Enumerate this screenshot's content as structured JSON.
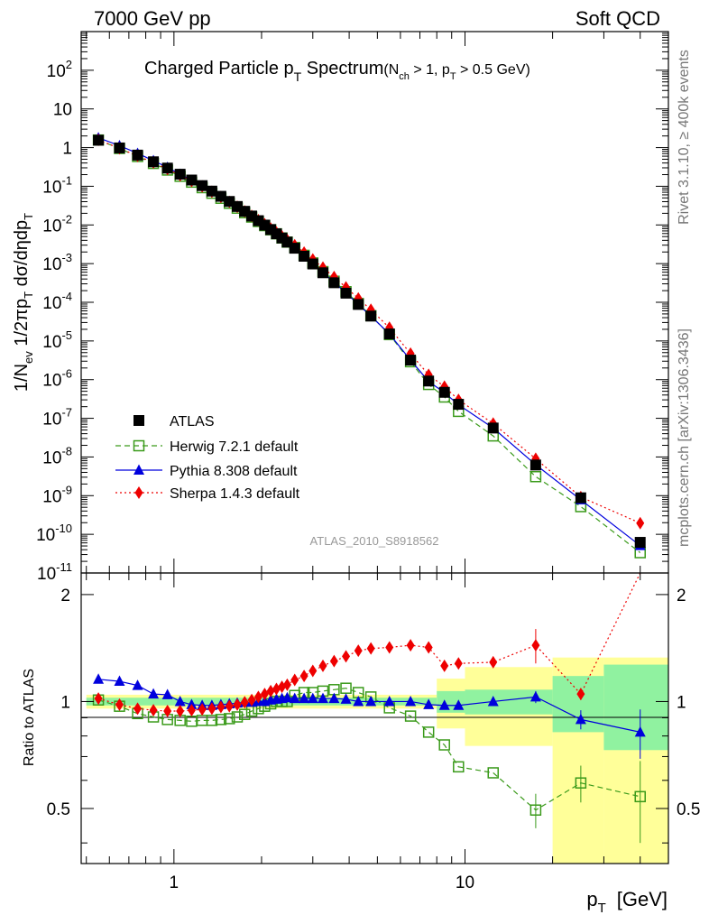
{
  "header": {
    "left": "7000 GeV pp",
    "right": "Soft QCD"
  },
  "side_labels": {
    "rivet": "Rivet 3.1.10, ≥ 400k events",
    "mcplots": "mcplots.cern.ch [arXiv:1306.3436]"
  },
  "analysis_id": "ATLAS_2010_S8918562",
  "colors": {
    "atlas": "#000000",
    "herwig": "#3a9a1a",
    "pythia": "#0000dd",
    "sherpa": "#ee0000",
    "band_inner": "#90f2a0",
    "band_outer": "#ffff99"
  },
  "chart_data": [
    {
      "type": "scatter",
      "panel": "main",
      "title": {
        "main": "Charged Particle p",
        "sub": "T",
        "rest": " Spectrum",
        "cond_a": "(N",
        "cond_a_sub": "ch",
        "cond_b": " > 1, p",
        "cond_b_sub": "T",
        "cond_c": " > 0.5 GeV)"
      },
      "ylabel": "1/N_ev 1/2πp_T dσ/dηdp_T",
      "ylabel_parts": {
        "a": "1/N",
        "a_sub": "ev",
        "b": " 1/2πp",
        "b_sub": "T",
        "c": " dσ/dηdp",
        "c_sub": "T"
      },
      "x_scale": "log",
      "y_scale": "log",
      "xlim": [
        0.48,
        50
      ],
      "ylim": [
        1e-11,
        1000
      ],
      "y_ticks": [
        {
          "v": 100,
          "m": "10",
          "e": "2"
        },
        {
          "v": 10,
          "m": "10",
          "e": ""
        },
        {
          "v": 1,
          "m": "1",
          "e": ""
        },
        {
          "v": 0.1,
          "m": "10",
          "e": "-1"
        },
        {
          "v": 0.01,
          "m": "10",
          "e": "-2"
        },
        {
          "v": 0.001,
          "m": "10",
          "e": "-3"
        },
        {
          "v": 0.0001,
          "m": "10",
          "e": "-4"
        },
        {
          "v": 1e-05,
          "m": "10",
          "e": "-5"
        },
        {
          "v": 1e-06,
          "m": "10",
          "e": "-6"
        },
        {
          "v": 1e-07,
          "m": "10",
          "e": "-7"
        },
        {
          "v": 1e-08,
          "m": "10",
          "e": "-8"
        },
        {
          "v": 1e-09,
          "m": "10",
          "e": "-9"
        },
        {
          "v": 1e-10,
          "m": "10",
          "e": "-10"
        },
        {
          "v": 1e-11,
          "m": "10",
          "e": "-11"
        }
      ],
      "x": [
        0.55,
        0.65,
        0.75,
        0.85,
        0.95,
        1.05,
        1.15,
        1.25,
        1.35,
        1.45,
        1.55,
        1.65,
        1.75,
        1.85,
        1.95,
        2.05,
        2.15,
        2.25,
        2.35,
        2.45,
        2.6,
        2.8,
        3.0,
        3.25,
        3.55,
        3.9,
        4.3,
        4.75,
        5.5,
        6.5,
        7.5,
        8.5,
        9.5,
        12.5,
        17.5,
        25.0,
        40.0
      ],
      "series": [
        {
          "key": "atlas",
          "name": "ATLAS",
          "values": [
            1.55,
            0.98,
            0.64,
            0.43,
            0.295,
            0.205,
            0.145,
            0.104,
            0.075,
            0.055,
            0.0405,
            0.03,
            0.0225,
            0.017,
            0.0129,
            0.0099,
            0.0076,
            0.0059,
            0.0046,
            0.0036,
            0.0025,
            0.00155,
            0.00098,
            0.00058,
            0.00032,
            0.000172,
            8.8e-05,
            4.4e-05,
            1.52e-05,
            3.2e-06,
            9.2e-07,
            4.7e-07,
            2.3e-07,
            5.6e-08,
            6.2e-09,
            8.8e-10,
            6.2e-11
          ]
        },
        {
          "key": "herwig",
          "name": "Herwig 7.2.1 default",
          "values": [
            1.57,
            0.95,
            0.59,
            0.39,
            0.263,
            0.181,
            0.128,
            0.092,
            0.066,
            0.049,
            0.0363,
            0.0272,
            0.0207,
            0.016,
            0.0123,
            0.0096,
            0.0075,
            0.0059,
            0.0046,
            0.0036,
            0.0026,
            0.00164,
            0.00104,
            0.00062,
            0.00035,
            0.000188,
            9.3e-05,
            4.5e-05,
            1.46e-05,
            2.9e-06,
            7.5e-07,
            3.55e-07,
            1.51e-07,
            3.5e-08,
            3.1e-09,
            5.2e-10,
            3.35e-11
          ]
        },
        {
          "key": "pythia",
          "name": "Pythia 8.308 default",
          "values": [
            1.79,
            1.12,
            0.71,
            0.46,
            0.308,
            0.205,
            0.142,
            0.101,
            0.073,
            0.054,
            0.0398,
            0.0296,
            0.0223,
            0.0169,
            0.0129,
            0.0099,
            0.0077,
            0.006,
            0.0047,
            0.0037,
            0.00255,
            0.00158,
            0.001,
            0.00059,
            0.00033,
            0.000175,
            8.8e-05,
            4.4e-05,
            1.52e-05,
            3.2e-06,
            9e-07,
            4.6e-07,
            2.25e-07,
            5.6e-08,
            6.3e-09,
            7.8e-10,
            5.1e-11
          ]
        },
        {
          "key": "sherpa",
          "name": "Sherpa 1.4.3 default",
          "values": [
            1.58,
            0.96,
            0.61,
            0.41,
            0.278,
            0.193,
            0.137,
            0.099,
            0.072,
            0.053,
            0.0393,
            0.0295,
            0.0224,
            0.0172,
            0.0133,
            0.0104,
            0.0081,
            0.0064,
            0.0051,
            0.0041,
            0.003,
            0.00193,
            0.00128,
            0.00079,
            0.00045,
            0.000243,
            0.000126,
            6.4e-05,
            2.2e-05,
            4.7e-06,
            1.33e-06,
            6.6e-07,
            3e-07,
            7.3e-08,
            9e-09,
            9.2e-10,
            1.95e-10
          ]
        }
      ],
      "legend": {
        "placement": "bottom-left"
      }
    },
    {
      "type": "line",
      "panel": "ratio",
      "ylabel": "Ratio to ATLAS",
      "x_scale": "log",
      "xlabel": "p_T [GeV]",
      "xlabel_parts": {
        "a": "p",
        "a_sub": "T",
        "b": "[GeV]"
      },
      "xlim": [
        0.48,
        50
      ],
      "ylim": [
        0.35,
        2.3
      ],
      "y_ticks": [
        {
          "v": 0.5,
          "label": "0.5"
        },
        {
          "v": 1,
          "label": "1"
        },
        {
          "v": 2,
          "label": "2"
        }
      ],
      "x_ticks": [
        {
          "v": 1,
          "label": "1"
        },
        {
          "v": 10,
          "label": "10"
        }
      ],
      "bands": [
        {
          "x0": 0.5,
          "x1": 8.0,
          "inner": [
            0.975,
            1.025
          ],
          "outer": [
            0.955,
            1.045
          ]
        },
        {
          "x0": 8.0,
          "x1": 10.0,
          "inner": [
            0.93,
            1.07
          ],
          "outer": [
            0.84,
            1.16
          ]
        },
        {
          "x0": 10.0,
          "x1": 20.0,
          "inner": [
            0.92,
            1.08
          ],
          "outer": [
            0.75,
            1.25
          ]
        },
        {
          "x0": 20.0,
          "x1": 30.0,
          "inner": [
            0.82,
            1.18
          ],
          "outer": [
            0.35,
            1.33
          ]
        },
        {
          "x0": 30.0,
          "x1": 50.0,
          "inner": [
            0.73,
            1.27
          ],
          "outer": [
            0.35,
            1.33
          ]
        }
      ],
      "series": [
        {
          "key": "herwig",
          "values": [
            1.01,
            0.97,
            0.925,
            0.905,
            0.89,
            0.885,
            0.88,
            0.885,
            0.885,
            0.89,
            0.895,
            0.905,
            0.92,
            0.94,
            0.955,
            0.97,
            0.985,
            1.0,
            1.0,
            1.0,
            1.04,
            1.06,
            1.06,
            1.07,
            1.08,
            1.09,
            1.06,
            1.03,
            0.96,
            0.91,
            0.82,
            0.755,
            0.655,
            0.63,
            0.495,
            0.59,
            0.54
          ],
          "err": [
            0,
            0,
            0,
            0,
            0,
            0,
            0,
            0,
            0,
            0,
            0,
            0,
            0,
            0,
            0,
            0,
            0,
            0,
            0,
            0,
            0,
            0,
            0,
            0,
            0,
            0,
            0,
            0,
            0,
            0,
            0,
            0,
            0,
            0,
            0.055,
            0.07,
            0.14
          ]
        },
        {
          "key": "pythia",
          "values": [
            1.155,
            1.14,
            1.11,
            1.05,
            1.045,
            1.0,
            0.98,
            0.975,
            0.975,
            0.98,
            0.985,
            0.99,
            0.995,
            0.995,
            1.0,
            1.0,
            1.01,
            1.015,
            1.02,
            1.025,
            1.02,
            1.02,
            1.02,
            1.02,
            1.02,
            1.015,
            1.0,
            1.0,
            1.0,
            1.0,
            0.98,
            0.975,
            0.975,
            1.0,
            1.03,
            0.89,
            0.82
          ],
          "err": [
            0,
            0,
            0,
            0,
            0,
            0,
            0,
            0,
            0,
            0,
            0,
            0,
            0,
            0,
            0,
            0,
            0,
            0,
            0,
            0,
            0,
            0,
            0,
            0,
            0,
            0,
            0,
            0,
            0,
            0,
            0,
            0,
            0,
            0,
            0.04,
            0.055,
            0.13
          ]
        },
        {
          "key": "sherpa",
          "values": [
            1.02,
            0.98,
            0.955,
            0.945,
            0.94,
            0.94,
            0.945,
            0.95,
            0.955,
            0.965,
            0.97,
            0.98,
            0.995,
            1.01,
            1.03,
            1.05,
            1.07,
            1.085,
            1.1,
            1.115,
            1.15,
            1.18,
            1.22,
            1.26,
            1.3,
            1.34,
            1.39,
            1.41,
            1.42,
            1.44,
            1.42,
            1.26,
            1.28,
            1.29,
            1.44,
            1.05,
            2.3
          ],
          "err": [
            0,
            0,
            0,
            0,
            0,
            0,
            0,
            0,
            0,
            0,
            0,
            0,
            0,
            0,
            0,
            0,
            0,
            0,
            0,
            0,
            0,
            0,
            0,
            0,
            0,
            0,
            0,
            0,
            0,
            0,
            0,
            0,
            0,
            0.04,
            0.16,
            0.04,
            0
          ]
        }
      ]
    }
  ]
}
